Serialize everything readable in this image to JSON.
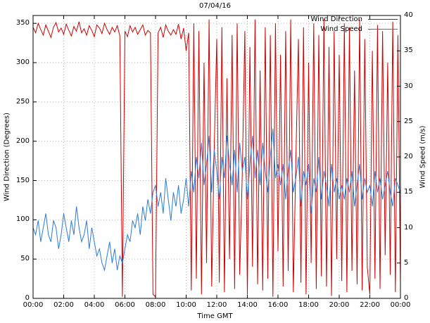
{
  "chart_data": {
    "type": "line",
    "title": "07/04/16",
    "xlabel": "Time GMT",
    "ylabel_left": "Wind Direction (Degrees)",
    "ylabel_right": "Wind Speed (m/s)",
    "grid": true,
    "grid_color": "#b5b5b5",
    "background": "#ffffff",
    "x_ticks": [
      "00:00",
      "02:00",
      "04:00",
      "06:00",
      "08:00",
      "10:00",
      "12:00",
      "14:00",
      "16:00",
      "18:00",
      "20:00",
      "22:00",
      "00:00"
    ],
    "x_range_minutes": [
      0,
      1440
    ],
    "y_left": {
      "range": [
        0,
        360
      ],
      "ticks": [
        0,
        50,
        100,
        150,
        200,
        250,
        300,
        350
      ]
    },
    "y_right": {
      "range": [
        0,
        40
      ],
      "ticks": [
        0,
        5,
        10,
        15,
        20,
        25,
        30,
        35,
        40
      ]
    },
    "legend": [
      {
        "label": "Wind Direction",
        "color": "#cc0000"
      },
      {
        "label": "Wind Speed",
        "color": "#2b7bd8"
      }
    ],
    "series": [
      {
        "name": "Wind Direction",
        "axis": "left",
        "color": "#cc0000",
        "x_step_minutes": 10,
        "values": [
          345,
          338,
          350,
          342,
          335,
          348,
          340,
          332,
          345,
          351,
          339,
          344,
          336,
          349,
          341,
          334,
          346,
          340,
          352,
          338,
          343,
          335,
          347,
          341,
          333,
          348,
          344,
          337,
          350,
          342,
          336,
          345,
          339,
          347,
          334,
          2,
          340,
          333,
          347,
          339,
          345,
          336,
          342,
          348,
          335,
          341,
          338,
          5,
          2,
          338,
          345,
          332,
          348,
          340,
          335,
          342,
          336,
          349,
          330,
          344,
          315,
          338,
          10,
          350,
          25,
          340,
          5,
          300,
          45,
          355,
          15,
          190,
          330,
          20,
          345,
          8,
          280,
          50,
          335,
          12,
          350,
          30,
          160,
          340,
          5,
          320,
          40,
          355,
          18,
          290,
          10,
          345,
          25,
          335,
          2,
          350,
          60,
          310,
          15,
          340,
          35,
          355,
          8,
          175,
          330,
          20,
          345,
          5,
          300,
          45,
          350,
          12,
          335,
          28,
          355,
          15,
          320,
          3,
          340,
          50,
          310,
          22,
          350,
          8,
          345,
          35,
          290,
          18,
          355,
          10,
          330,
          40,
          5,
          315,
          25,
          348,
          12,
          340,
          55,
          300,
          30,
          352,
          8,
          335,
          20
        ]
      },
      {
        "name": "Wind Speed",
        "axis": "right",
        "color": "#2b7bd8",
        "x_step_minutes": 10,
        "values": [
          10,
          9,
          11,
          8,
          10,
          12,
          9,
          8,
          11,
          10,
          7,
          9,
          12,
          10,
          8,
          11,
          9,
          13,
          10,
          8,
          9,
          11,
          7,
          10,
          8,
          6,
          7,
          5,
          4,
          6,
          8,
          5,
          7,
          4,
          6,
          5,
          7,
          9,
          8,
          11,
          10,
          12,
          9,
          13,
          11,
          14,
          12,
          15,
          16,
          13,
          15,
          12,
          17,
          14,
          11,
          15,
          13,
          16,
          12,
          14,
          17,
          13,
          18,
          15,
          20,
          17,
          22,
          16,
          19,
          23,
          15,
          21,
          18,
          14,
          20,
          17,
          23,
          19,
          16,
          21,
          15,
          22,
          18,
          20,
          14,
          19,
          23,
          17,
          21,
          16,
          22,
          18,
          15,
          20,
          24,
          17,
          19,
          16,
          19,
          14,
          18,
          21,
          15,
          17,
          20,
          13,
          18,
          16,
          19,
          12,
          17,
          15,
          20,
          14,
          18,
          16,
          13,
          19,
          15,
          17,
          14,
          16,
          14,
          17,
          15,
          18,
          13,
          16,
          19,
          14,
          17,
          15,
          16,
          13,
          18,
          15,
          17,
          14,
          16,
          18,
          15,
          13,
          17,
          16,
          15
        ]
      }
    ]
  }
}
